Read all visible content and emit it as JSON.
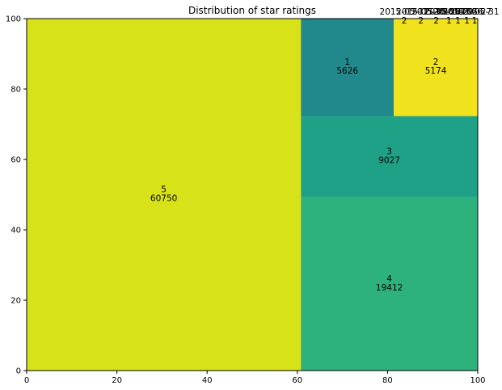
{
  "chart_data": {
    "type": "treemap",
    "title": "Distribution of star ratings",
    "xlabel": "",
    "ylabel": "",
    "xlim": [
      0,
      100
    ],
    "ylim": [
      0,
      100
    ],
    "xticks": [
      "0",
      "20",
      "40",
      "60",
      "80",
      "100"
    ],
    "yticks": [
      "0",
      "20",
      "40",
      "60",
      "80",
      "100"
    ],
    "grid": false,
    "legend": "none",
    "cells": [
      {
        "label": "5",
        "value": 60750,
        "color": "#d8e219",
        "x0": 0,
        "x1": 60.8,
        "y0": 0,
        "y1": 100
      },
      {
        "label": "4",
        "value": 19412,
        "color": "#2db27d",
        "x0": 60.8,
        "x1": 100,
        "y0": 0,
        "y1": 49.3
      },
      {
        "label": "3",
        "value": 9027,
        "color": "#1fa188",
        "x0": 60.8,
        "x1": 100,
        "y0": 49.3,
        "y1": 72.3
      },
      {
        "label": "1",
        "value": 5626,
        "color": "#21898b",
        "x0": 60.8,
        "x1": 81.4,
        "y0": 72.3,
        "y1": 100
      },
      {
        "label": "2",
        "value": 5174,
        "color": "#f0e31d",
        "x0": 81.4,
        "x1": 100,
        "y0": 72.3,
        "y1": 100
      },
      {
        "label": "2015-05-31",
        "value": 2,
        "color": "#440154",
        "x0": 99.86,
        "x1": 99.88,
        "y0": 99.9,
        "y1": 100,
        "label_x": 83.7
      },
      {
        "label": "2015-05-30",
        "value": 2,
        "color": "#440154",
        "x0": 99.88,
        "x1": 99.9,
        "y0": 99.9,
        "y1": 100,
        "label_x": 87.4
      },
      {
        "label": "2015-05-28",
        "value": 2,
        "color": "#440154",
        "x0": 99.9,
        "x1": 99.92,
        "y0": 99.9,
        "y1": 100,
        "label_x": 90.8
      },
      {
        "label": "2015-05-29",
        "value": 1,
        "color": "#440154",
        "x0": 99.92,
        "x1": 99.94,
        "y0": 99.9,
        "y1": 100,
        "label_x": 93.6
      },
      {
        "label": "2015-05-26",
        "value": 1,
        "color": "#440154",
        "x0": 99.94,
        "x1": 99.96,
        "y0": 99.9,
        "y1": 100,
        "label_x": 95.6
      },
      {
        "label": "2015-05-27",
        "value": 1,
        "color": "#440154",
        "x0": 99.96,
        "x1": 99.98,
        "y0": 99.9,
        "y1": 100,
        "label_x": 97.6
      },
      {
        "label": "2015-05-31",
        "value": 1,
        "color": "#440154",
        "x0": 99.98,
        "x1": 100,
        "y0": 99.9,
        "y1": 100,
        "label_x": 99.3
      }
    ]
  }
}
